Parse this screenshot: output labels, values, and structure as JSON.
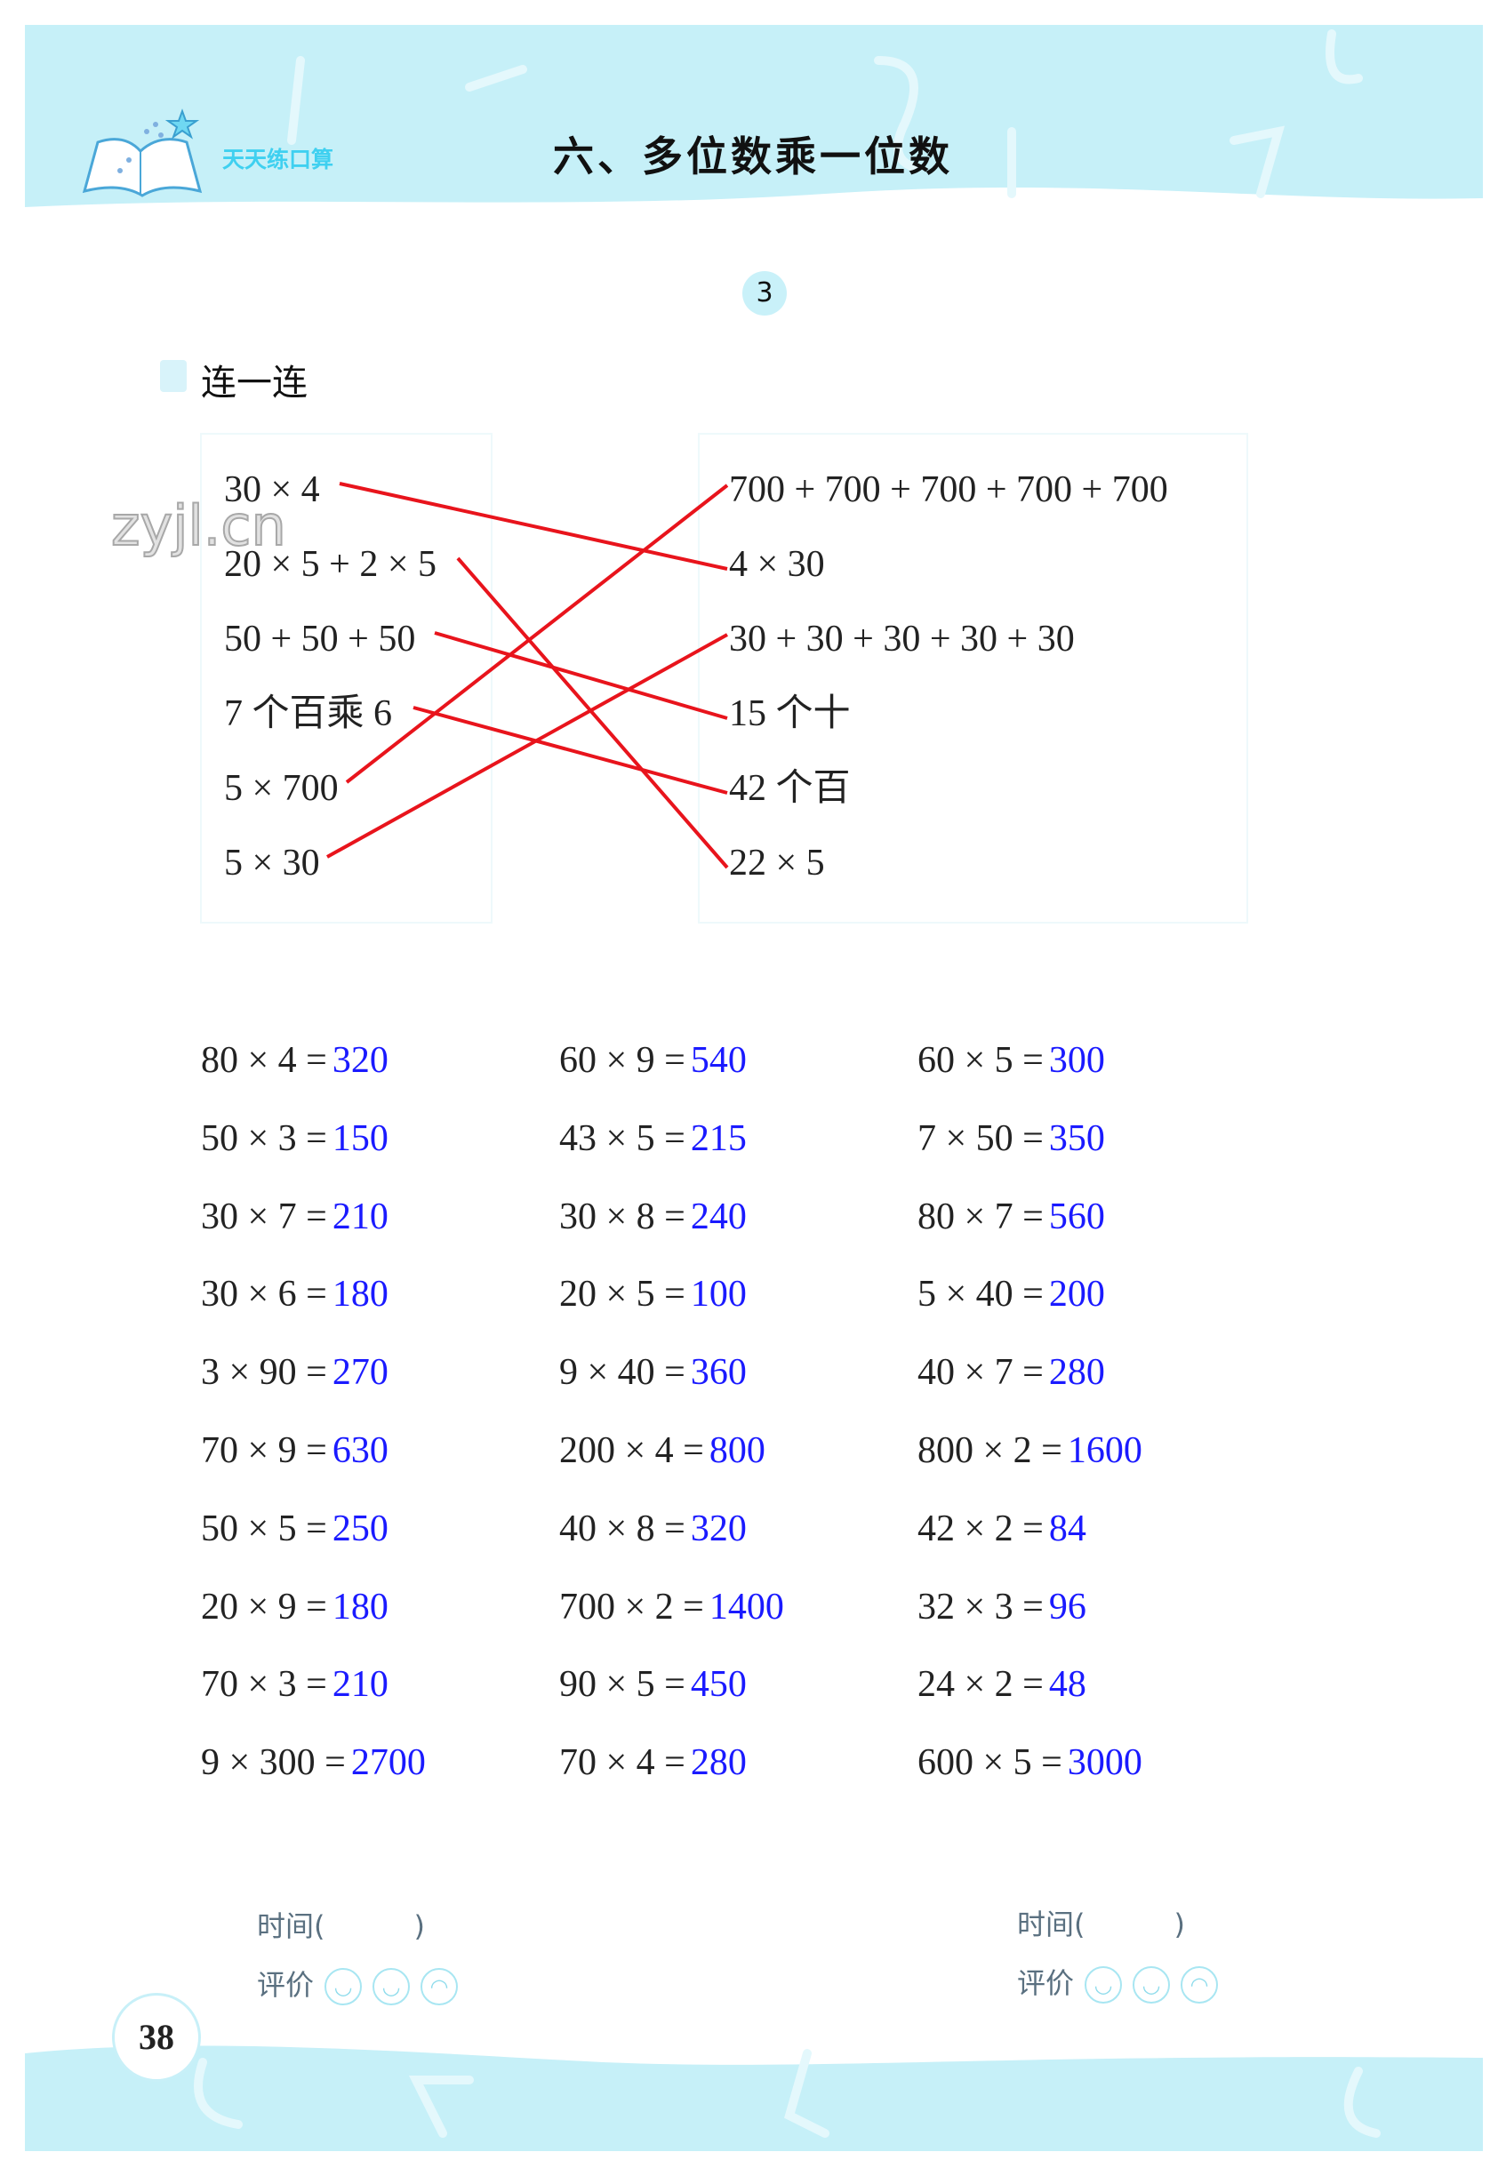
{
  "header": {
    "brand": "天天练口算",
    "title": "六、多位数乘一位数",
    "lesson_number": "3"
  },
  "section": {
    "title": "连一连"
  },
  "watermark": "zyjl.cn",
  "matching": {
    "left": [
      "30 × 4",
      "20 × 5 + 2 × 5",
      "50 + 50 + 50",
      "7 个百乘 6",
      "5 × 700",
      "5 × 30"
    ],
    "right": [
      "700 + 700 + 700 + 700 + 700",
      "4 × 30",
      "30 + 30 + 30 + 30 + 30",
      "15 个十",
      "42 个百",
      "22 × 5"
    ],
    "connections": [
      [
        0,
        1
      ],
      [
        1,
        5
      ],
      [
        2,
        3
      ],
      [
        3,
        4
      ],
      [
        4,
        0
      ],
      [
        5,
        2
      ]
    ],
    "line_color": "#e8141c"
  },
  "answer_color": "#1a1aff",
  "equations": [
    [
      {
        "q": "80 × 4 =",
        "a": "320"
      },
      {
        "q": "50 × 3 =",
        "a": "150"
      },
      {
        "q": "30 × 7 =",
        "a": "210"
      },
      {
        "q": "30 × 6 =",
        "a": "180"
      },
      {
        "q": "3 × 90 =",
        "a": "270"
      },
      {
        "q": "70 × 9 =",
        "a": "630"
      },
      {
        "q": "50 × 5 =",
        "a": "250"
      },
      {
        "q": "20 × 9 =",
        "a": "180"
      },
      {
        "q": "70 × 3 =",
        "a": "210"
      },
      {
        "q": "9 × 300 =",
        "a": "2700"
      }
    ],
    [
      {
        "q": "60 × 9 =",
        "a": "540"
      },
      {
        "q": "43 × 5 =",
        "a": "215"
      },
      {
        "q": "30 × 8 =",
        "a": "240"
      },
      {
        "q": "20 × 5 =",
        "a": "100"
      },
      {
        "q": "9 × 40 =",
        "a": "360"
      },
      {
        "q": "200 × 4 =",
        "a": "800"
      },
      {
        "q": "40 × 8 =",
        "a": "320"
      },
      {
        "q": "700 × 2 =",
        "a": "1400"
      },
      {
        "q": "90 × 5 =",
        "a": "450"
      },
      {
        "q": "70 × 4 =",
        "a": "280"
      }
    ],
    [
      {
        "q": "60 × 5 =",
        "a": "300"
      },
      {
        "q": "7 × 50 =",
        "a": "350"
      },
      {
        "q": "80 × 7 =",
        "a": "560"
      },
      {
        "q": "5 × 40 =",
        "a": "200"
      },
      {
        "q": "40 × 7 =",
        "a": "280"
      },
      {
        "q": "800 × 2 =",
        "a": "1600"
      },
      {
        "q": "42 × 2 =",
        "a": "84"
      },
      {
        "q": "32 × 3 =",
        "a": "96"
      },
      {
        "q": "24 × 2 =",
        "a": "48"
      },
      {
        "q": "600 × 5 =",
        "a": "3000"
      }
    ]
  ],
  "footer": {
    "time_label": "时间(",
    "time_close": ")",
    "rating_label": "评价",
    "page_number": "38",
    "rating_icons": [
      "smile-big-icon",
      "smile-icon",
      "frown-icon"
    ]
  }
}
